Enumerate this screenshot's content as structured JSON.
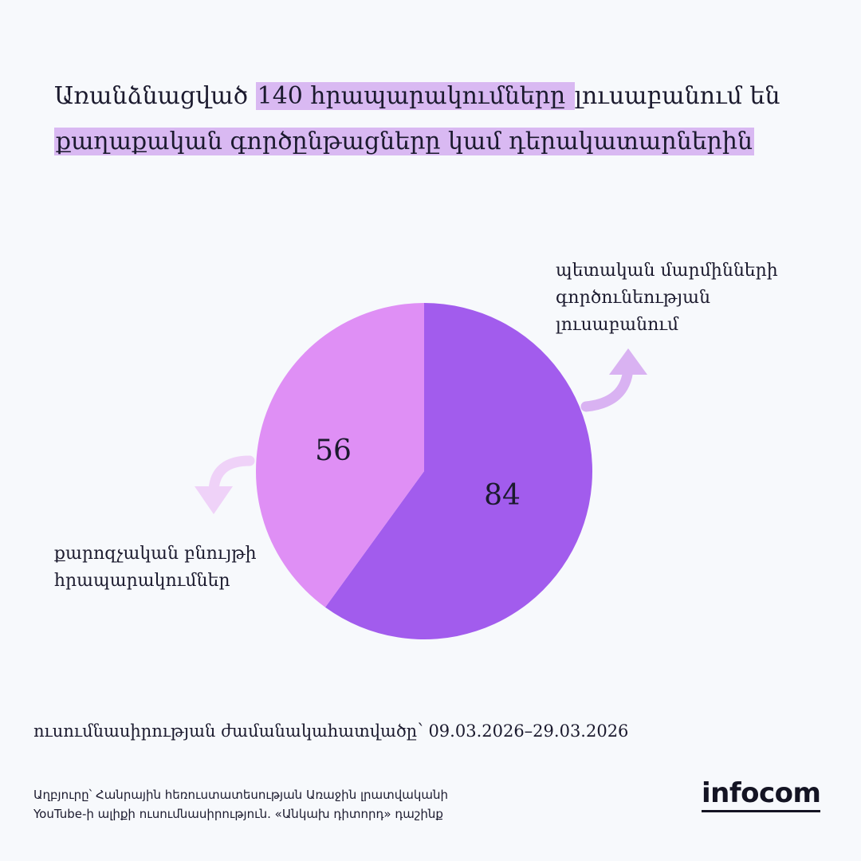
{
  "headline": {
    "part1": "Առանձնացված ",
    "highlight1": "140 հրապարակումները ",
    "part2": " լուսաբանում են",
    "highlight2": "քաղաքական գործընթացները կամ դերակատարներին"
  },
  "chart_data": {
    "type": "pie",
    "slices": [
      {
        "label": "պետական մարմինների գործունեության լուսաբանում",
        "value": 84,
        "color": "#a25ced"
      },
      {
        "label": "քարոզչական բնույթի հրապարակումներ",
        "value": 56,
        "color": "#df8ff5"
      }
    ]
  },
  "labels": {
    "right": [
      "պետական մարմինների",
      "գործունեության",
      "լուսաբանում"
    ],
    "left": [
      "քարոզչական բնույթի",
      "հրապարակումներ"
    ]
  },
  "period": "ուսումնասիրության ժամանակահատվածը՝ 09.03.2026–29.03.2026",
  "source": [
    "Աղբյուրը՝ Հանրային հեռուստատեսության Առաջին լրատվականի",
    "YouTube-ի ալիքի ուսումնասիրություն. «Անկախ դիտորդ» դաշինք"
  ],
  "logo": "infocom",
  "colors": {
    "arrow": "#d9b2f2",
    "highlight": "#d9b9f2"
  }
}
